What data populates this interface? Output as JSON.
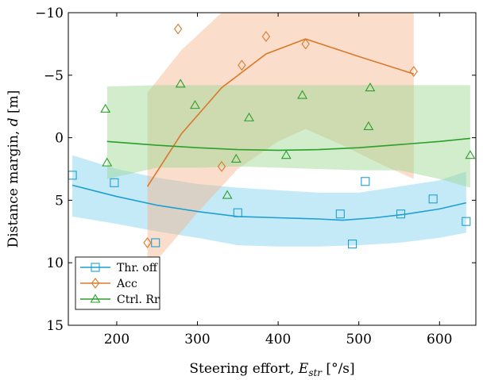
{
  "chart_data": {
    "type": "scatter",
    "xlabel": "Steering effort, ",
    "xlabel_var": "E",
    "xlabel_sub": "str",
    "xlabel_unit": " [°/s]",
    "ylabel": "Distance margin, ",
    "ylabel_var": "d",
    "ylabel_unit": " [m]",
    "xlim": [
      140,
      645
    ],
    "ylim": [
      -10,
      15
    ],
    "y_inverted": true,
    "xticks": [
      200,
      300,
      400,
      500,
      600
    ],
    "yticks": [
      -10,
      -5,
      0,
      5,
      10,
      15
    ],
    "xtick_labels": [
      "200",
      "300",
      "400",
      "500",
      "600"
    ],
    "ytick_labels": [
      "−10",
      "−5",
      "0",
      "5",
      "10",
      "15"
    ],
    "grid": false,
    "legend_position": "bottom-left",
    "series": [
      {
        "name": "Thr. off",
        "color": "#1f9fd1",
        "band_color": "#7fd0ee",
        "marker": "square",
        "points": [
          [
            145,
            3.0
          ],
          [
            197,
            3.6
          ],
          [
            248,
            8.4
          ],
          [
            350,
            6.0
          ],
          [
            477,
            6.1
          ],
          [
            492,
            8.5
          ],
          [
            508,
            3.5
          ],
          [
            552,
            6.1
          ],
          [
            592,
            4.9
          ],
          [
            633,
            6.7
          ]
        ],
        "fit": [
          [
            145,
            3.8
          ],
          [
            200,
            4.7
          ],
          [
            250,
            5.4
          ],
          [
            300,
            5.9
          ],
          [
            350,
            6.3
          ],
          [
            400,
            6.4
          ],
          [
            450,
            6.5
          ],
          [
            480,
            6.6
          ],
          [
            520,
            6.4
          ],
          [
            560,
            6.1
          ],
          [
            600,
            5.7
          ],
          [
            633,
            5.2
          ]
        ],
        "band_upper": [
          [
            145,
            6.3
          ],
          [
            200,
            6.9
          ],
          [
            250,
            7.5
          ],
          [
            300,
            8.0
          ],
          [
            350,
            8.6
          ],
          [
            400,
            8.7
          ],
          [
            450,
            8.7
          ],
          [
            500,
            8.6
          ],
          [
            550,
            8.4
          ],
          [
            600,
            8.0
          ],
          [
            633,
            7.6
          ]
        ],
        "band_lower": [
          [
            145,
            1.4
          ],
          [
            200,
            2.5
          ],
          [
            250,
            3.2
          ],
          [
            300,
            3.7
          ],
          [
            350,
            4.0
          ],
          [
            400,
            4.2
          ],
          [
            450,
            4.4
          ],
          [
            500,
            4.4
          ],
          [
            550,
            3.9
          ],
          [
            600,
            3.4
          ],
          [
            633,
            2.7
          ]
        ]
      },
      {
        "name": "Acc",
        "color": "#d97a2b",
        "band_color": "#f3b48a",
        "marker": "diamond",
        "points": [
          [
            238,
            8.4
          ],
          [
            276,
            -8.7
          ],
          [
            330,
            2.3
          ],
          [
            355,
            -5.8
          ],
          [
            385,
            -8.1
          ],
          [
            434,
            -7.5
          ],
          [
            568,
            -5.3
          ]
        ],
        "fit": [
          [
            238,
            3.9
          ],
          [
            280,
            -0.3
          ],
          [
            330,
            -4.0
          ],
          [
            385,
            -6.7
          ],
          [
            434,
            -7.9
          ],
          [
            500,
            -6.5
          ],
          [
            568,
            -5.1
          ]
        ],
        "band_upper": [
          [
            238,
            10.0
          ],
          [
            255,
            9.4
          ],
          [
            300,
            6.0
          ],
          [
            350,
            2.5
          ],
          [
            400,
            0.3
          ],
          [
            434,
            -0.7
          ],
          [
            480,
            0.6
          ],
          [
            530,
            2.2
          ],
          [
            568,
            3.3
          ]
        ],
        "band_lower": [
          [
            238,
            -3.6
          ],
          [
            280,
            -7.0
          ],
          [
            330,
            -10.0
          ],
          [
            385,
            -13.1
          ],
          [
            434,
            -14.7
          ],
          [
            480,
            -14.1
          ],
          [
            530,
            -13.6
          ],
          [
            568,
            -13.5
          ]
        ]
      },
      {
        "name": "Ctrl. Rr",
        "color": "#2aa12a",
        "band_color": "#99d68f",
        "marker": "triangle",
        "points": [
          [
            188,
            2.0
          ],
          [
            186,
            -2.3
          ],
          [
            279,
            -4.3
          ],
          [
            297,
            -2.6
          ],
          [
            337,
            4.6
          ],
          [
            348,
            1.7
          ],
          [
            364,
            -1.6
          ],
          [
            410,
            1.4
          ],
          [
            430,
            -3.4
          ],
          [
            512,
            -0.9
          ],
          [
            514,
            -4.0
          ],
          [
            638,
            1.4
          ]
        ],
        "fit": [
          [
            188,
            0.3
          ],
          [
            250,
            0.6
          ],
          [
            300,
            0.8
          ],
          [
            350,
            0.95
          ],
          [
            400,
            1.0
          ],
          [
            450,
            0.95
          ],
          [
            500,
            0.8
          ],
          [
            550,
            0.55
          ],
          [
            600,
            0.3
          ],
          [
            638,
            0.05
          ]
        ],
        "band_upper": [
          [
            188,
            3.3
          ],
          [
            250,
            2.4
          ],
          [
            300,
            2.4
          ],
          [
            350,
            2.3
          ],
          [
            400,
            2.4
          ],
          [
            450,
            2.5
          ],
          [
            500,
            2.6
          ],
          [
            550,
            2.6
          ],
          [
            600,
            3.3
          ],
          [
            638,
            4.0
          ]
        ],
        "band_lower": [
          [
            188,
            -4.1
          ],
          [
            250,
            -4.2
          ],
          [
            300,
            -4.2
          ],
          [
            350,
            -4.2
          ],
          [
            400,
            -4.2
          ],
          [
            450,
            -4.2
          ],
          [
            500,
            -4.2
          ],
          [
            550,
            -4.2
          ],
          [
            600,
            -4.2
          ],
          [
            638,
            -4.2
          ]
        ]
      }
    ]
  }
}
